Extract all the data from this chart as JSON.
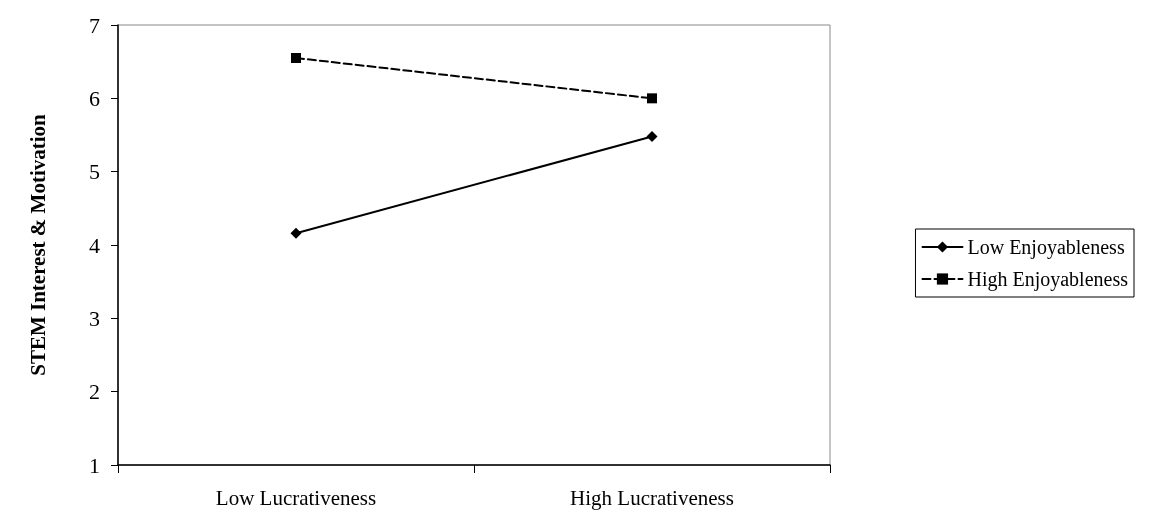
{
  "chart_data": {
    "type": "line",
    "ylabel": "STEM Interest & Motivation",
    "categories": [
      "Low Lucrativeness",
      "High Lucrativeness"
    ],
    "series": [
      {
        "name": "Low Enjoyableness",
        "color": "#000000",
        "values": [
          4.16,
          5.48
        ],
        "marker": "diamond",
        "line_style": "solid"
      },
      {
        "name": "High Enjoyableness",
        "color": "#000000",
        "values": [
          6.55,
          6.0
        ],
        "marker": "square",
        "line_style": "dashed"
      }
    ],
    "ylim": [
      1,
      7
    ],
    "yticks": [
      1,
      2,
      3,
      4,
      5,
      6,
      7
    ],
    "grid": false,
    "legend": "right"
  }
}
